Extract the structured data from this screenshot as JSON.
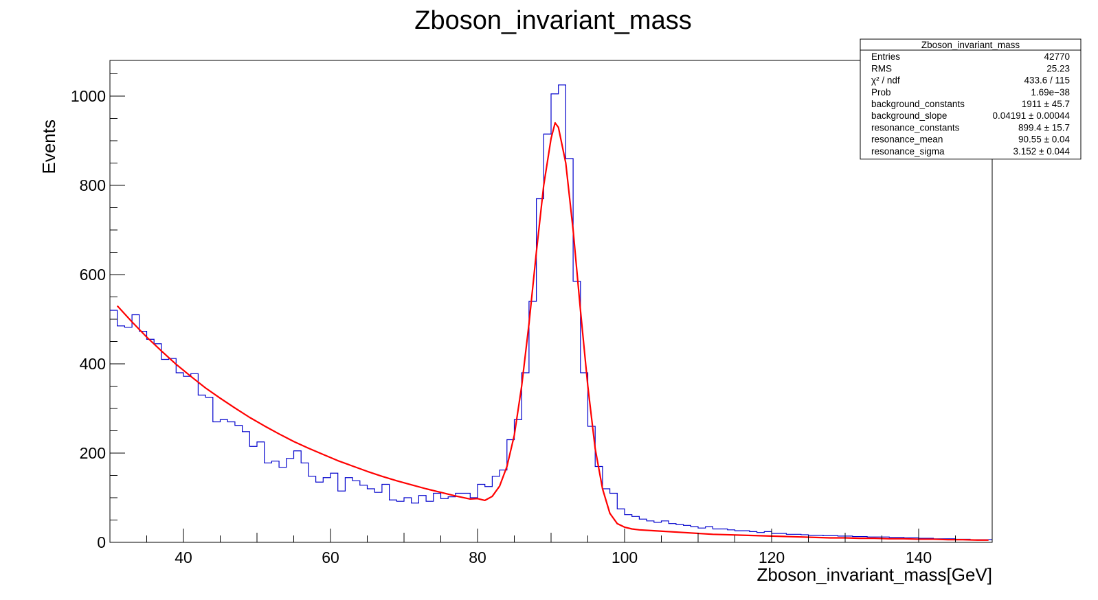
{
  "chart_data": {
    "type": "bar",
    "title": "Zboson_invariant_mass",
    "xlabel": "Zboson_invariant_mass[GeV]",
    "ylabel": "Events",
    "xlim": [
      30,
      150
    ],
    "ylim": [
      0,
      1080
    ],
    "x_ticks": [
      40,
      60,
      80,
      100,
      120,
      140
    ],
    "y_ticks": [
      0,
      200,
      400,
      600,
      800,
      1000
    ],
    "bin_width": 1,
    "x_start": 30,
    "grid": false,
    "colors": {
      "histogram": "#0000cc",
      "fit": "#ff0000",
      "frame": "#000000"
    },
    "series": [
      {
        "type": "histogram",
        "values": [
          520,
          485,
          482,
          510,
          473,
          455,
          445,
          410,
          412,
          380,
          372,
          378,
          330,
          325,
          270,
          275,
          270,
          262,
          248,
          215,
          225,
          178,
          182,
          168,
          188,
          205,
          178,
          148,
          135,
          145,
          155,
          115,
          145,
          138,
          128,
          120,
          112,
          130,
          95,
          92,
          100,
          88,
          105,
          92,
          110,
          98,
          102,
          110,
          110,
          100,
          130,
          125,
          148,
          162,
          230,
          275,
          380,
          540,
          770,
          915,
          1005,
          1025,
          860,
          585,
          380,
          260,
          170,
          120,
          110,
          75,
          62,
          58,
          52,
          48,
          45,
          48,
          42,
          40,
          38,
          35,
          32,
          35,
          30,
          30,
          28,
          26,
          26,
          24,
          22,
          24,
          20,
          20,
          18,
          18,
          17,
          16,
          16,
          15,
          15,
          14,
          14,
          13,
          13,
          12,
          12,
          12,
          11,
          11,
          10,
          10,
          9,
          9,
          8,
          8,
          8,
          7,
          7,
          6,
          6,
          6
        ]
      },
      {
        "type": "line",
        "name": "fit",
        "x": [
          31,
          33,
          35,
          37,
          39,
          41,
          43,
          45,
          47,
          49,
          51,
          53,
          55,
          57,
          59,
          61,
          63,
          65,
          67,
          69,
          71,
          73,
          75,
          77,
          79,
          80,
          81,
          82,
          83,
          84,
          85,
          86,
          87,
          88,
          89,
          90,
          90.55,
          91,
          92,
          93,
          94,
          95,
          96,
          97,
          98,
          99,
          100,
          101,
          102,
          104,
          106,
          108,
          110,
          112,
          114,
          116,
          118,
          120,
          122,
          124,
          126,
          128,
          130,
          132,
          134,
          136,
          138,
          140,
          142,
          144,
          146,
          148,
          149.5
        ],
        "y": [
          530,
          494,
          460,
          429,
          399,
          372,
          346,
          323,
          301,
          280,
          261,
          243,
          226,
          211,
          197,
          183,
          171,
          159,
          148,
          138,
          129,
          120,
          112,
          104,
          97,
          98,
          94,
          103,
          126,
          170,
          240,
          350,
          490,
          650,
          800,
          905,
          940,
          930,
          850,
          700,
          520,
          350,
          210,
          120,
          65,
          42,
          34,
          30,
          28,
          26,
          24,
          22,
          20,
          18,
          17,
          16,
          15,
          14,
          13,
          12,
          11,
          10,
          10,
          9,
          9,
          8,
          8,
          7,
          7,
          6,
          6,
          5,
          5
        ]
      }
    ],
    "stats_box": {
      "title": "Zboson_invariant_mass",
      "rows": [
        {
          "label": "Entries",
          "value": "42770"
        },
        {
          "label": "RMS",
          "value": "25.23"
        },
        {
          "label": "χ² / ndf",
          "value": "433.6 / 115"
        },
        {
          "label": "Prob",
          "value": "1.69e−38"
        },
        {
          "label": "background_constants",
          "value": "1911 ± 45.7"
        },
        {
          "label": "background_slope",
          "value": "0.04191 ± 0.00044"
        },
        {
          "label": "resonance_constants",
          "value": "899.4 ± 15.7"
        },
        {
          "label": "resonance_mean",
          "value": "90.55 ± 0.04"
        },
        {
          "label": "resonance_sigma",
          "value": "3.152 ± 0.044"
        }
      ]
    }
  }
}
